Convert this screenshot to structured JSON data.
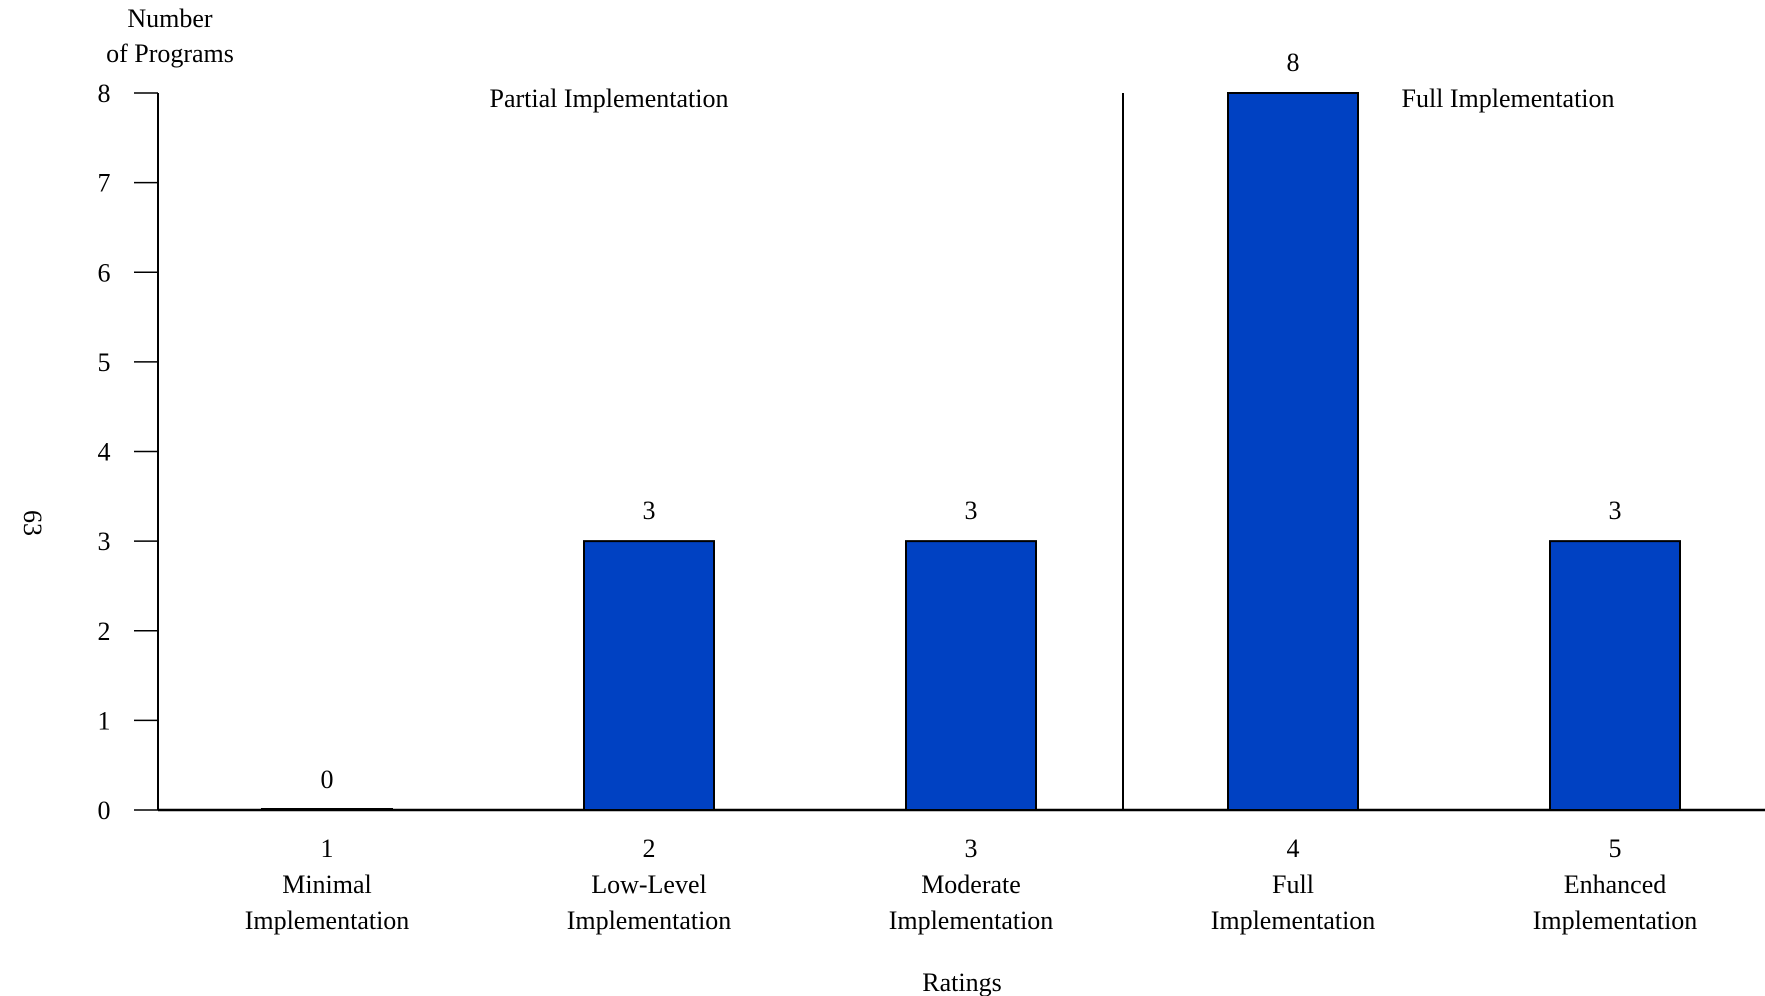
{
  "page_number": "63",
  "chart_data": {
    "type": "bar",
    "title": "",
    "ylabel_lines": [
      "Number",
      "of Programs"
    ],
    "xlabel": "Ratings",
    "ylim": [
      0,
      8
    ],
    "y_ticks": [
      0,
      1,
      2,
      3,
      4,
      5,
      6,
      7,
      8
    ],
    "categories": [
      {
        "number": "1",
        "line1": "Minimal",
        "line2": "Implementation"
      },
      {
        "number": "2",
        "line1": "Low-Level",
        "line2": "Implementation"
      },
      {
        "number": "3",
        "line1": "Moderate",
        "line2": "Implementation"
      },
      {
        "number": "4",
        "line1": "Full",
        "line2": "Implementation"
      },
      {
        "number": "5",
        "line1": "Enhanced",
        "line2": "Implementation"
      }
    ],
    "values": [
      0,
      3,
      3,
      8,
      3
    ],
    "regions": [
      {
        "label": "Partial Implementation",
        "categories": [
          "1",
          "2",
          "3"
        ]
      },
      {
        "label": "Full Implementation",
        "categories": [
          "4",
          "5"
        ]
      }
    ],
    "bar_color": "#0041c2",
    "grid": false,
    "legend": "none"
  }
}
